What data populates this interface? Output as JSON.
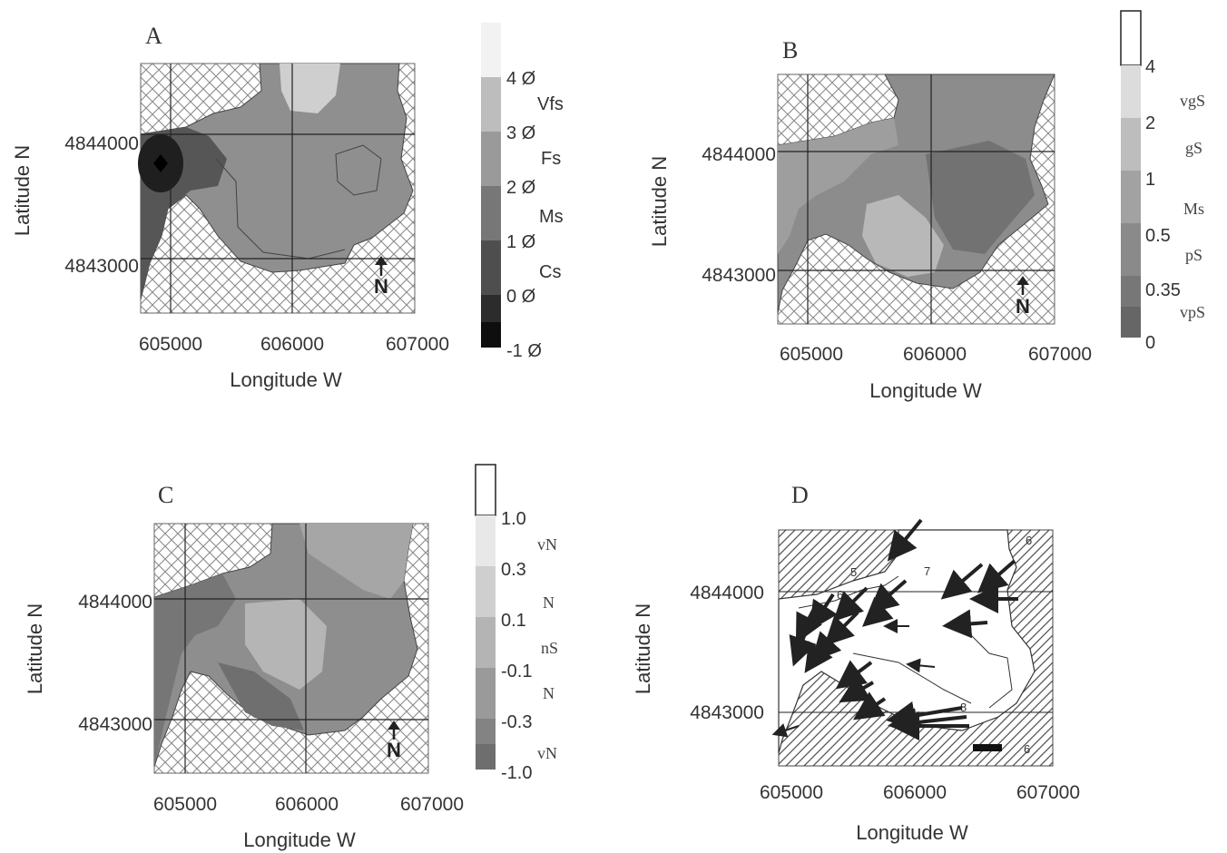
{
  "panels": [
    {
      "id": "A",
      "label": "A",
      "x_axis": {
        "label": "Longitude W",
        "ticks": [
          "605000",
          "606000",
          "607000"
        ]
      },
      "y_axis": {
        "label": "Latitude N",
        "ticks": [
          "4844000",
          "4843000"
        ]
      },
      "north": "N",
      "colorbar": {
        "ticks": [
          "4 Ø",
          "3 Ø",
          "2 Ø",
          "1 Ø",
          "0 Ø",
          "-1 Ø"
        ],
        "classes": [
          "Vfs",
          "Fs",
          "Ms",
          "Cs"
        ],
        "colors": [
          "#f2f2f2",
          "#bdbdbd",
          "#9a9a9a",
          "#777777",
          "#4e4e4e",
          "#2c2c2c",
          "#0e0e0e"
        ]
      }
    },
    {
      "id": "B",
      "label": "B",
      "x_axis": {
        "label": "Longitude W",
        "ticks": [
          "605000",
          "606000",
          "607000"
        ]
      },
      "y_axis": {
        "label": "Latitude N",
        "ticks": [
          "4844000",
          "4843000"
        ]
      },
      "north": "N",
      "colorbar": {
        "ticks": [
          "4",
          "2",
          "1",
          "0.5",
          "0.35",
          "0"
        ],
        "classes": [
          "vgS",
          "gS",
          "Ms",
          "pS",
          "vpS"
        ],
        "colors": [
          "#ffffff",
          "#dcdcdc",
          "#bdbdbd",
          "#a2a2a2",
          "#8a8a8a",
          "#777777",
          "#666666"
        ]
      }
    },
    {
      "id": "C",
      "label": "C",
      "x_axis": {
        "label": "Longitude W",
        "ticks": [
          "605000",
          "606000",
          "607000"
        ]
      },
      "y_axis": {
        "label": "Latitude N",
        "ticks": [
          "4844000",
          "4843000"
        ]
      },
      "north": "N",
      "colorbar": {
        "ticks": [
          "1.0",
          "0.3",
          "0.1",
          "-0.1",
          "-0.3",
          "-1.0"
        ],
        "classes": [
          "vN",
          "N",
          "nS",
          "N",
          "vN"
        ],
        "colors": [
          "#ffffff",
          "#e8e8e8",
          "#cfcfcf",
          "#b4b4b4",
          "#9a9a9a",
          "#838383",
          "#6e6e6e"
        ]
      }
    },
    {
      "id": "D",
      "label": "D",
      "x_axis": {
        "label": "Longitude W",
        "ticks": [
          "605000",
          "606000",
          "607000"
        ]
      },
      "y_axis": {
        "label": "Latitude N",
        "ticks": [
          "4844000",
          "4843000"
        ]
      },
      "contour_labels": [
        "5",
        "6",
        "7",
        "6",
        "8",
        "6"
      ]
    }
  ]
}
